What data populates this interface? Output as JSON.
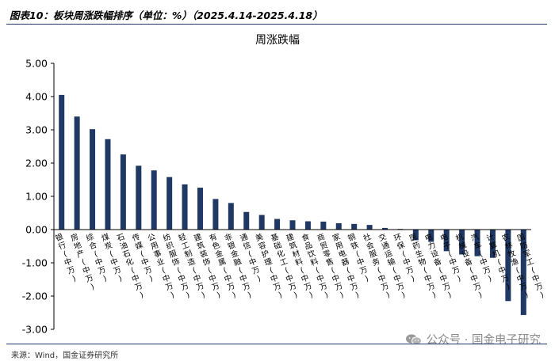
{
  "header": {
    "title": "图表10：板块周涨跌幅排序（单位：%）（2025.4.14-2025.4.18）"
  },
  "footer": {
    "source": "来源：Wind，国金证券研究所"
  },
  "watermark": {
    "text": "公众号 · 国金电子研究",
    "icon": "wechat-icon"
  },
  "colors": {
    "bar": "#1f3864",
    "axis": "#000000"
  },
  "chart_data": {
    "type": "bar",
    "title": "周涨跌幅",
    "xlabel": "",
    "ylabel": "",
    "ylim": [
      -3,
      5
    ],
    "yticks": [
      "5.00",
      "4.00",
      "3.00",
      "2.00",
      "1.00",
      "0.00",
      "-1.00",
      "-2.00",
      "-3.00"
    ],
    "grid": false,
    "legend": "none",
    "categories": [
      "银行(中万)",
      "房地产(中万)",
      "综合(中万)",
      "煤炭(中万)",
      "石油石化(中万)",
      "传媒(中万)",
      "公用事业(中万)",
      "纺织服饰(中万)",
      "轻工制造(中万)",
      "建筑装饰(中万)",
      "有色金属(中万)",
      "非银金融(中万)",
      "通信(中万)",
      "美容护理(中万)",
      "基础化工(中万)",
      "建筑材料(中万)",
      "食品饮料(中万)",
      "商贸零售(中万)",
      "家用电器(中万)",
      "钢铁(中万)",
      "社会服务(中万)",
      "交通运输(中万)",
      "环保(中万)",
      "医药生物(中万)",
      "电力设备(中万)",
      "电子(中万)",
      "机械设备(中万)",
      "汽车(中万)",
      "计算机(中万)",
      "农林牧渔(中万)",
      "国防军工(中万)"
    ],
    "values": [
      4.05,
      3.4,
      3.02,
      2.72,
      2.26,
      1.92,
      1.78,
      1.58,
      1.36,
      1.26,
      0.92,
      0.8,
      0.53,
      0.44,
      0.32,
      0.28,
      0.25,
      0.24,
      0.19,
      0.17,
      0.14,
      0.05,
      0.02,
      -0.32,
      -0.37,
      -0.65,
      -0.75,
      -0.8,
      -0.85,
      -2.15,
      -2.57
    ]
  }
}
